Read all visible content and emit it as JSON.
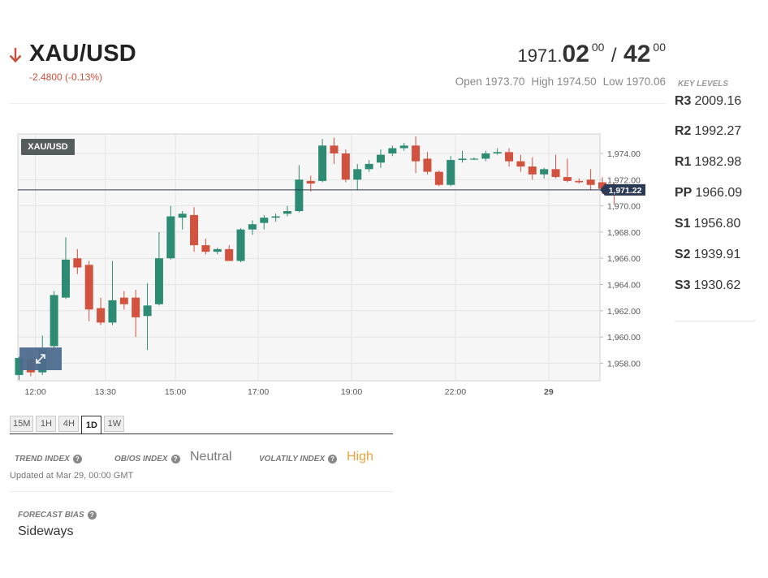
{
  "instrument": {
    "symbol": "XAU/USD",
    "change": "-2.4800 (-0.13%)",
    "direction_icon": "arrow-down-icon",
    "down_color": "#c8503c"
  },
  "quote": {
    "bid_int": "1971.",
    "bid_big": "02",
    "bid_sup": "00",
    "separator": "/",
    "ask_big": "42",
    "ask_sup": "00",
    "open": "Open 1973.70",
    "high": "High 1974.50",
    "low": "Low 1970.06"
  },
  "key_levels": {
    "title": "KEY LEVELS",
    "items": [
      {
        "label": "R3",
        "value": "2009.16"
      },
      {
        "label": "R2",
        "value": "1992.27"
      },
      {
        "label": "R1",
        "value": "1982.98"
      },
      {
        "label": "PP",
        "value": "1966.09"
      },
      {
        "label": "S1",
        "value": "1956.80"
      },
      {
        "label": "S2",
        "value": "1939.91"
      },
      {
        "label": "S3",
        "value": "1930.62"
      }
    ]
  },
  "chart_data": {
    "type": "candlestick",
    "symbol_badge": "XAU/USD",
    "expand_icon": "expand-icon",
    "up_color": "#2e8b73",
    "down_color": "#d1523e",
    "ylim": [
      1956.5,
      1975.5
    ],
    "y_ticks": [
      "1,974.00",
      "1,972.00",
      "1,970.00",
      "1,968.00",
      "1,966.00",
      "1,964.00",
      "1,962.00",
      "1,960.00",
      "1,958.00"
    ],
    "y_tick_values": [
      1974,
      1972,
      1970,
      1968,
      1966,
      1964,
      1962,
      1960,
      1958
    ],
    "last_price": 1971.22,
    "last_price_label": "1,971.22",
    "x_ticks": [
      {
        "label": "12:00",
        "index": 1.4
      },
      {
        "label": "13:30",
        "index": 7.4
      },
      {
        "label": "15:00",
        "index": 13.4
      },
      {
        "label": "17:00",
        "index": 20.5
      },
      {
        "label": "19:00",
        "index": 28.5
      },
      {
        "label": "22:00",
        "index": 37.4
      },
      {
        "label": "29",
        "index": 45.4
      }
    ],
    "candles": [
      {
        "o": 1957.1,
        "h": 1958.5,
        "l": 1956.7,
        "c": 1958.4
      },
      {
        "o": 1958.3,
        "h": 1958.8,
        "l": 1957.0,
        "c": 1957.3
      },
      {
        "o": 1957.3,
        "h": 1960.1,
        "l": 1957.1,
        "c": 1959.1
      },
      {
        "o": 1959.3,
        "h": 1963.5,
        "l": 1959.0,
        "c": 1963.2
      },
      {
        "o": 1963.0,
        "h": 1967.6,
        "l": 1962.9,
        "c": 1965.9
      },
      {
        "o": 1966.0,
        "h": 1966.7,
        "l": 1964.8,
        "c": 1965.3
      },
      {
        "o": 1965.5,
        "h": 1965.8,
        "l": 1961.2,
        "c": 1962.1
      },
      {
        "o": 1962.2,
        "h": 1963.0,
        "l": 1960.9,
        "c": 1961.1
      },
      {
        "o": 1961.1,
        "h": 1965.8,
        "l": 1960.9,
        "c": 1962.8
      },
      {
        "o": 1963.0,
        "h": 1963.5,
        "l": 1962.1,
        "c": 1962.5
      },
      {
        "o": 1963.0,
        "h": 1963.6,
        "l": 1960.0,
        "c": 1961.5
      },
      {
        "o": 1961.6,
        "h": 1964.1,
        "l": 1959.0,
        "c": 1962.4
      },
      {
        "o": 1962.5,
        "h": 1968.0,
        "l": 1962.4,
        "c": 1966.0
      },
      {
        "o": 1966.0,
        "h": 1970.0,
        "l": 1965.9,
        "c": 1969.2
      },
      {
        "o": 1969.1,
        "h": 1969.6,
        "l": 1968.2,
        "c": 1969.4
      },
      {
        "o": 1969.3,
        "h": 1969.9,
        "l": 1966.5,
        "c": 1967.0
      },
      {
        "o": 1967.0,
        "h": 1967.5,
        "l": 1966.3,
        "c": 1966.5
      },
      {
        "o": 1966.5,
        "h": 1966.8,
        "l": 1966.3,
        "c": 1966.7
      },
      {
        "o": 1966.7,
        "h": 1967.0,
        "l": 1965.8,
        "c": 1965.8
      },
      {
        "o": 1965.8,
        "h": 1968.3,
        "l": 1965.7,
        "c": 1968.2
      },
      {
        "o": 1968.2,
        "h": 1968.9,
        "l": 1967.8,
        "c": 1968.6
      },
      {
        "o": 1968.7,
        "h": 1969.3,
        "l": 1968.2,
        "c": 1969.1
      },
      {
        "o": 1969.1,
        "h": 1969.4,
        "l": 1968.8,
        "c": 1969.2
      },
      {
        "o": 1969.4,
        "h": 1970.0,
        "l": 1969.2,
        "c": 1969.6
      },
      {
        "o": 1969.6,
        "h": 1973.1,
        "l": 1969.5,
        "c": 1972.0
      },
      {
        "o": 1971.9,
        "h": 1972.3,
        "l": 1971.1,
        "c": 1971.7
      },
      {
        "o": 1971.9,
        "h": 1975.1,
        "l": 1971.8,
        "c": 1974.6
      },
      {
        "o": 1974.6,
        "h": 1975.2,
        "l": 1973.2,
        "c": 1974.0
      },
      {
        "o": 1974.0,
        "h": 1974.3,
        "l": 1971.8,
        "c": 1972.0
      },
      {
        "o": 1972.0,
        "h": 1973.2,
        "l": 1971.2,
        "c": 1972.8
      },
      {
        "o": 1972.8,
        "h": 1973.5,
        "l": 1972.6,
        "c": 1973.2
      },
      {
        "o": 1973.3,
        "h": 1974.3,
        "l": 1972.9,
        "c": 1973.9
      },
      {
        "o": 1974.0,
        "h": 1974.6,
        "l": 1973.8,
        "c": 1974.4
      },
      {
        "o": 1974.4,
        "h": 1974.8,
        "l": 1974.2,
        "c": 1974.6
      },
      {
        "o": 1974.6,
        "h": 1975.3,
        "l": 1972.5,
        "c": 1973.4
      },
      {
        "o": 1973.6,
        "h": 1974.1,
        "l": 1972.4,
        "c": 1972.6
      },
      {
        "o": 1972.6,
        "h": 1972.7,
        "l": 1971.5,
        "c": 1971.6
      },
      {
        "o": 1971.6,
        "h": 1973.8,
        "l": 1971.5,
        "c": 1973.5
      },
      {
        "o": 1973.5,
        "h": 1974.2,
        "l": 1973.3,
        "c": 1973.6
      },
      {
        "o": 1973.6,
        "h": 1973.7,
        "l": 1973.5,
        "c": 1973.6
      },
      {
        "o": 1973.6,
        "h": 1974.2,
        "l": 1973.4,
        "c": 1974.0
      },
      {
        "o": 1974.0,
        "h": 1974.4,
        "l": 1973.9,
        "c": 1974.1
      },
      {
        "o": 1974.1,
        "h": 1974.4,
        "l": 1973.0,
        "c": 1973.4
      },
      {
        "o": 1973.4,
        "h": 1973.9,
        "l": 1972.6,
        "c": 1973.0
      },
      {
        "o": 1973.0,
        "h": 1973.7,
        "l": 1972.0,
        "c": 1972.4
      },
      {
        "o": 1972.4,
        "h": 1972.9,
        "l": 1972.1,
        "c": 1972.8
      },
      {
        "o": 1972.8,
        "h": 1973.9,
        "l": 1972.1,
        "c": 1972.2
      },
      {
        "o": 1972.2,
        "h": 1973.6,
        "l": 1971.8,
        "c": 1971.9
      },
      {
        "o": 1971.9,
        "h": 1972.1,
        "l": 1971.7,
        "c": 1971.8
      },
      {
        "o": 1972.0,
        "h": 1972.8,
        "l": 1971.2,
        "c": 1971.6
      },
      {
        "o": 1971.8,
        "h": 1972.2,
        "l": 1970.9,
        "c": 1971.3
      },
      {
        "o": 1971.4,
        "h": 1971.8,
        "l": 1970.1,
        "c": 1971.0
      }
    ]
  },
  "timeframes": {
    "items": [
      "15M",
      "1H",
      "4H",
      "1D",
      "1W"
    ],
    "active": "1D"
  },
  "indexes": {
    "trend_label": "TREND INDEX",
    "obos_label": "OB/OS INDEX",
    "obos_value": "Neutral",
    "volatility_label": "VOLATILY INDEX",
    "volatility_value": "High",
    "neutral_color": "#777777",
    "high_color": "#e8a33d",
    "help_icon": "help-icon",
    "updated": "Updated at Mar 29, 00:00 GMT"
  },
  "forecast": {
    "label": "FORECAST BIAS",
    "value": "Sideways"
  }
}
